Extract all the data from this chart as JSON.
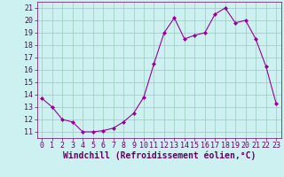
{
  "x": [
    0,
    1,
    2,
    3,
    4,
    5,
    6,
    7,
    8,
    9,
    10,
    11,
    12,
    13,
    14,
    15,
    16,
    17,
    18,
    19,
    20,
    21,
    22,
    23
  ],
  "y": [
    13.7,
    13.0,
    12.0,
    11.8,
    11.0,
    11.0,
    11.1,
    11.3,
    11.8,
    12.5,
    13.8,
    16.5,
    19.0,
    20.2,
    18.5,
    18.8,
    19.0,
    20.5,
    21.0,
    19.8,
    20.0,
    18.5,
    16.3,
    13.3
  ],
  "line_color": "#990099",
  "marker": "D",
  "marker_size": 2,
  "bg_color": "#cdf0f0",
  "grid_color": "#99ccbb",
  "xlabel": "Windchill (Refroidissement éolien,°C)",
  "xlabel_color": "#660066",
  "xlabel_fontsize": 7,
  "tick_color": "#660066",
  "tick_fontsize": 6,
  "ylim": [
    10.5,
    21.5
  ],
  "xlim": [
    -0.5,
    23.5
  ],
  "yticks": [
    11,
    12,
    13,
    14,
    15,
    16,
    17,
    18,
    19,
    20,
    21
  ],
  "xticks": [
    0,
    1,
    2,
    3,
    4,
    5,
    6,
    7,
    8,
    9,
    10,
    11,
    12,
    13,
    14,
    15,
    16,
    17,
    18,
    19,
    20,
    21,
    22,
    23
  ]
}
